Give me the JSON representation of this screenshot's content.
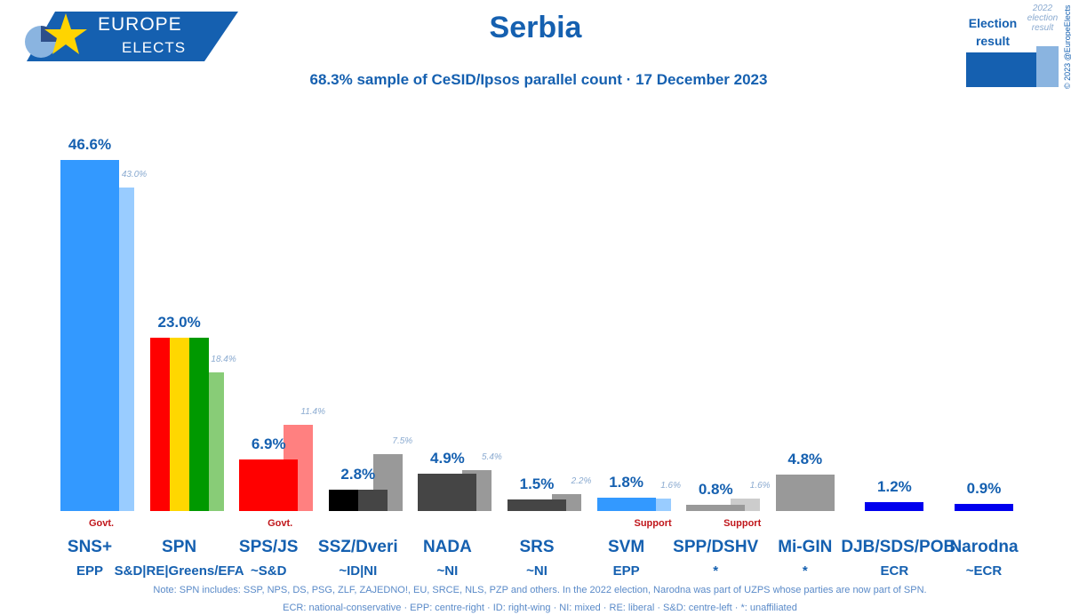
{
  "logo": {
    "line1": "EUROPE",
    "line2": "ELECTS"
  },
  "title": "Serbia",
  "subtitle": "68.3% sample of CeSID/Ipsos parallel count · 17 December 2023",
  "legend": {
    "current": "Election result",
    "previous": "2022 election result",
    "copyright": "© 2023 @EuropeElects"
  },
  "chart_data": {
    "type": "bar",
    "title": "Serbia",
    "ylim": [
      0,
      50
    ],
    "categories": [
      "SNS+",
      "SPN",
      "SPS/JS",
      "SSZ/Dveri",
      "NADA",
      "SRS",
      "SVM",
      "SPP/DSHV",
      "Mi-GIN",
      "DJB/SDS/POB",
      "Narodna"
    ],
    "series": [
      {
        "name": "Election result",
        "values": [
          46.6,
          23.0,
          6.9,
          2.8,
          4.9,
          1.5,
          1.8,
          0.8,
          4.8,
          1.2,
          0.9
        ],
        "labels": [
          "46.6%",
          "23.0%",
          "6.9%",
          "2.8%",
          "4.9%",
          "1.5%",
          "1.8%",
          "0.8%",
          "4.8%",
          "1.2%",
          "0.9%"
        ]
      },
      {
        "name": "2022 election result",
        "values": [
          43.0,
          18.4,
          11.4,
          7.5,
          5.4,
          2.2,
          1.6,
          1.6,
          null,
          null,
          null
        ],
        "labels": [
          "43.0%",
          "18.4%",
          "11.4%",
          "7.5%",
          "5.4%",
          "2.2%",
          "1.6%",
          "1.6%",
          null,
          null,
          null
        ]
      }
    ],
    "groups": [
      "EPP",
      "S&D|RE|Greens/EFA",
      "~S&D",
      "~ID|NI",
      "~NI",
      "~NI",
      "EPP",
      "*",
      "*",
      "ECR",
      "~ECR"
    ],
    "status": [
      "Govt.",
      "",
      "Govt.",
      "",
      "",
      "",
      "Support",
      "Support",
      "",
      "",
      ""
    ],
    "colors": [
      [
        "#3399ff"
      ],
      [
        "#ff0000",
        "#ffd700",
        "#009900"
      ],
      [
        "#ff0000"
      ],
      [
        "#000000",
        "#454545"
      ],
      [
        "#454545"
      ],
      [
        "#454545"
      ],
      [
        "#3399ff"
      ],
      [
        "#999999"
      ],
      [
        "#999999"
      ],
      [
        "#0000ee"
      ],
      [
        "#0000ee"
      ]
    ],
    "prev_colors": [
      "#99ccff",
      "#88cc77",
      "#ff8080",
      "#999999",
      "#999999",
      "#999999",
      "#99ccff",
      "#cccccc",
      null,
      null,
      null
    ]
  },
  "notes": [
    "Note: SPN includes: SSP, NPS, DS, PSG, ZLF, ZAJEDNO!, EU, SRCE, NLS, PZP and others. In the 2022 election, Narodna was part of UZPS whose parties are now part of SPN.",
    "ECR: national-conservative · EPP: centre-right · ID: right-wing · NI: mixed · RE: liberal · S&D: centre-left · *: unaffiliated"
  ]
}
